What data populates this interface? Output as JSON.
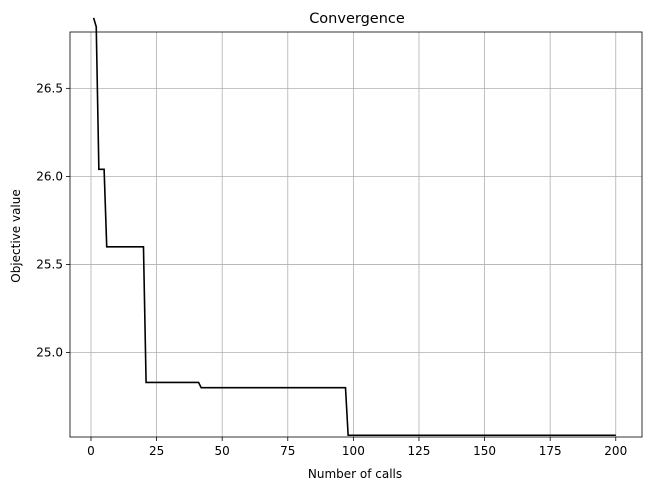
{
  "chart_data": {
    "type": "line",
    "title": "Convergence",
    "xlabel": "Number of calls",
    "ylabel": "Objective value",
    "xlim": [
      -8,
      210
    ],
    "ylim": [
      24.52,
      26.82
    ],
    "x_ticks": [
      0,
      25,
      50,
      75,
      100,
      125,
      150,
      175,
      200
    ],
    "y_ticks": [
      25.0,
      25.5,
      26.0,
      26.5
    ],
    "y_tick_labels": [
      "25.0",
      "25.5",
      "26.0",
      "26.5"
    ],
    "grid": true,
    "line_color": "#000000",
    "series": [
      {
        "x": [
          1,
          2,
          3,
          4,
          5,
          6,
          20,
          21,
          41,
          42,
          97,
          98,
          200
        ],
        "y": [
          26.9,
          26.85,
          26.04,
          26.04,
          26.04,
          25.6,
          25.6,
          24.83,
          24.83,
          24.8,
          24.8,
          24.53,
          24.53
        ]
      }
    ]
  }
}
